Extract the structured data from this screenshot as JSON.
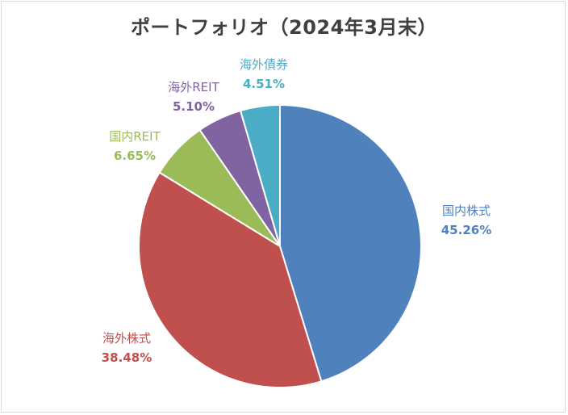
{
  "chart_data": {
    "type": "pie",
    "title": "ポートフォリオ（2024年3月末）",
    "slices": [
      {
        "label": "国内株式",
        "value_label": "45.26%",
        "value": 45.26,
        "color": "#4f81bd"
      },
      {
        "label": "海外株式",
        "value_label": "38.48%",
        "value": 38.48,
        "color": "#c0504d"
      },
      {
        "label": "国内REIT",
        "value_label": "6.65%",
        "value": 6.65,
        "color": "#9bbb59"
      },
      {
        "label": "海外REIT",
        "value_label": "5.10%",
        "value": 5.1,
        "color": "#8064a2"
      },
      {
        "label": "海外債券",
        "value_label": "4.51%",
        "value": 4.51,
        "color": "#4bacc6"
      }
    ],
    "start_angle": "12 o'clock",
    "direction": "clockwise",
    "legend": "none"
  }
}
